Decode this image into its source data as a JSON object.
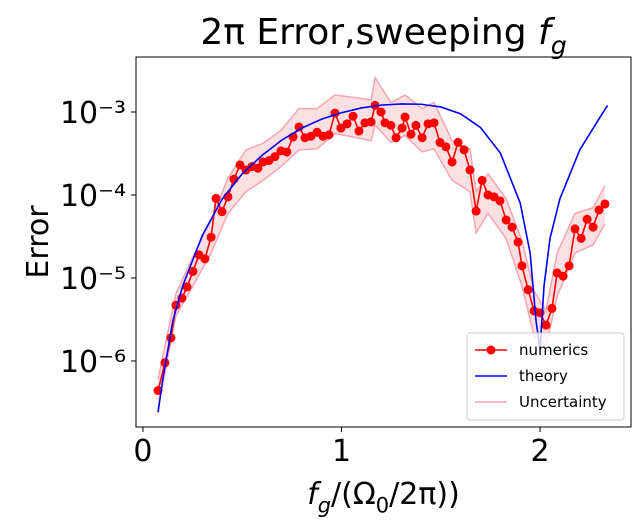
{
  "chart_data": {
    "type": "line",
    "log_y": true,
    "title": [
      {
        "text": "2π Error,sweeping "
      },
      {
        "text": "f",
        "italic": true
      },
      {
        "text": "g",
        "italic": true,
        "sub": true
      }
    ],
    "x_label": [
      {
        "text": "f",
        "italic": true
      },
      {
        "text": "g",
        "italic": true,
        "sub": true
      },
      {
        "text": "/(Ω"
      },
      {
        "text": "0",
        "sub": true
      },
      {
        "text": "/2π))"
      }
    ],
    "y_label": "Error",
    "xlim": [
      -0.035,
      2.458
    ],
    "xticks": [
      0,
      1,
      2
    ],
    "ylim": [
      1.6e-07,
      0.0046
    ],
    "yticks": [
      {
        "value": 1e-06,
        "label": "10⁻⁶"
      },
      {
        "value": 1e-05,
        "label": "10⁻⁵"
      },
      {
        "value": 0.0001,
        "label": "10⁻⁴"
      },
      {
        "value": 0.001,
        "label": "10⁻³"
      }
    ],
    "legend": "lower right",
    "series": [
      {
        "name": "numerics",
        "color": "#ff0000",
        "marker": true,
        "x": [
          0.076,
          0.111,
          0.141,
          0.166,
          0.196,
          0.222,
          0.252,
          0.282,
          0.312,
          0.343,
          0.368,
          0.398,
          0.428,
          0.458,
          0.489,
          0.519,
          0.549,
          0.579,
          0.605,
          0.635,
          0.665,
          0.695,
          0.725,
          0.756,
          0.786,
          0.816,
          0.846,
          0.877,
          0.907,
          0.937,
          0.967,
          0.997,
          1.028,
          1.058,
          1.088,
          1.118,
          1.149,
          1.169,
          1.199,
          1.219,
          1.249,
          1.275,
          1.305,
          1.32,
          1.35,
          1.375,
          1.406,
          1.436,
          1.466,
          1.496,
          1.526,
          1.557,
          1.587,
          1.617,
          1.647,
          1.678,
          1.708,
          1.738,
          1.768,
          1.798,
          1.829,
          1.859,
          1.889,
          1.909,
          1.94,
          1.97,
          2.0,
          2.03,
          2.06,
          2.086,
          2.116,
          2.146,
          2.176,
          2.207,
          2.237,
          2.267,
          2.297,
          2.327
        ],
        "values": [
          4.4e-07,
          9.5e-07,
          1.9e-06,
          4.7e-06,
          5.7e-06,
          7.8e-06,
          1.2e-05,
          1.9e-05,
          1.7e-05,
          3.1e-05,
          9.1e-05,
          6.3e-05,
          9.5e-05,
          0.000155,
          0.00023,
          0.0002,
          0.00022,
          0.00021,
          0.00025,
          0.00026,
          0.00029,
          0.00034,
          0.00033,
          0.0005,
          0.00066,
          0.00049,
          0.00051,
          0.00057,
          0.00051,
          0.00053,
          0.00097,
          0.00064,
          0.00072,
          0.00089,
          0.00059,
          0.00074,
          0.00076,
          0.0012,
          0.001,
          0.00074,
          0.00069,
          0.00049,
          0.00064,
          0.00087,
          0.00054,
          0.00069,
          0.00049,
          0.00072,
          0.00074,
          0.00043,
          0.00038,
          0.00025,
          0.00043,
          0.00035,
          0.0002,
          6.4e-05,
          0.00015,
          0.0001,
          9.5e-05,
          8.5e-05,
          5e-05,
          4.1e-05,
          2.7e-05,
          1.4e-05,
          7.2e-06,
          4e-06,
          3.8e-06,
          2.7e-06,
          4.3e-06,
          1.15e-05,
          1.05e-05,
          1.4e-05,
          3.9e-05,
          3e-05,
          5.1e-05,
          4.1e-05,
          6.6e-05,
          7.8e-05
        ]
      },
      {
        "name": "theory",
        "color": "#0000ff",
        "marker": false,
        "x": [
          0.076,
          0.1,
          0.15,
          0.2,
          0.3,
          0.4,
          0.5,
          0.6,
          0.7,
          0.8,
          0.9,
          1.0,
          1.1,
          1.2,
          1.3,
          1.4,
          1.5,
          1.6,
          1.7,
          1.8,
          1.9,
          1.95,
          1.98,
          2.0,
          2.02,
          2.05,
          2.1,
          2.2,
          2.3,
          2.34
        ],
        "values": [
          2.4e-07,
          6e-07,
          3e-06,
          8e-06,
          3.3e-05,
          9e-05,
          0.00018,
          0.0003,
          0.00046,
          0.00064,
          0.00082,
          0.00098,
          0.00112,
          0.00121,
          0.00125,
          0.00124,
          0.00115,
          0.00095,
          0.00065,
          0.00032,
          8e-05,
          2e-05,
          3e-06,
          1.4e-06,
          8e-06,
          3e-05,
          9e-05,
          0.00035,
          0.00085,
          0.0012
        ]
      }
    ],
    "band": {
      "name": "Uncertainty",
      "color": "#f4a6b0",
      "x": [
        0.076,
        0.166,
        0.252,
        0.343,
        0.428,
        0.519,
        0.605,
        0.695,
        0.786,
        0.877,
        0.967,
        1.058,
        1.149,
        1.169,
        1.249,
        1.32,
        1.406,
        1.466,
        1.557,
        1.647,
        1.678,
        1.738,
        1.829,
        1.909,
        1.97,
        2.03,
        2.086,
        2.176,
        2.267,
        2.327
      ],
      "upper": [
        6e-07,
        6.5e-06,
        1.8e-05,
        5e-05,
        0.00016,
        0.00035,
        0.00042,
        0.0006,
        0.0011,
        0.0011,
        0.0016,
        0.0015,
        0.0014,
        0.0026,
        0.0013,
        0.0016,
        0.0011,
        0.0013,
        0.00045,
        0.00036,
        0.00011,
        0.00018,
        9e-05,
        2.8e-05,
        7e-06,
        4e-06,
        2e-05,
        6e-05,
        7e-05,
        0.00013
      ],
      "lower": [
        2.7e-07,
        3.5e-06,
        8e-06,
        2e-05,
        6e-05,
        0.00011,
        0.00015,
        0.00022,
        0.00035,
        0.00036,
        0.00055,
        0.0005,
        0.00045,
        0.0007,
        0.00043,
        0.00052,
        0.00033,
        0.00036,
        0.00015,
        0.00011,
        3.5e-05,
        6e-05,
        3e-05,
        8e-06,
        2e-06,
        1.5e-06,
        6e-06,
        2e-05,
        2.5e-05,
        4.5e-05
      ]
    }
  }
}
